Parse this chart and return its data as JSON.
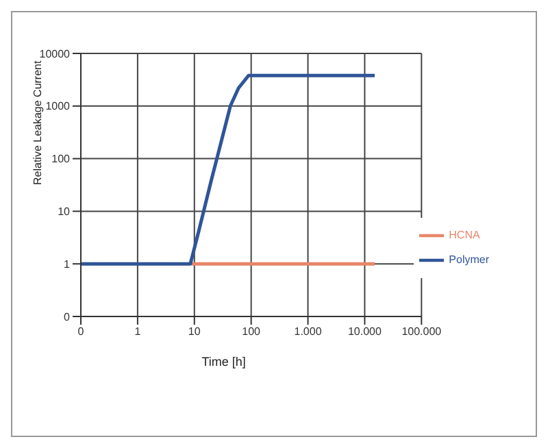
{
  "chart_data": {
    "type": "line",
    "xlabel": "Time [h]",
    "ylabel": "Relative Leakage Current",
    "log": "xy",
    "grid": true,
    "legend": "right",
    "marker": "none",
    "line_style": "solid",
    "xlim": [
      0.1,
      100000
    ],
    "xticks": [
      {
        "value": 0.1,
        "label": "0"
      },
      1,
      10,
      100,
      {
        "value": 1000,
        "label": "1.000"
      },
      {
        "value": 10000,
        "label": "10.000"
      },
      {
        "value": 100000,
        "label": "100.000"
      }
    ],
    "ylim": [
      0.1,
      10000
    ],
    "yticks": [
      {
        "value": 0.1,
        "label": "0"
      },
      1,
      10,
      100,
      1000,
      10000
    ],
    "series": [
      {
        "name": "HCNA",
        "color": "#e8866a",
        "x": [
          9,
          15000
        ],
        "values": [
          1,
          1
        ]
      },
      {
        "name": "Polymer",
        "color": "#2f5597",
        "x": [
          0.1,
          8.5,
          12,
          20,
          30,
          43,
          60,
          90,
          15000
        ],
        "values": [
          1,
          1,
          4.3,
          40,
          220,
          1000,
          2200,
          3800,
          3800
        ]
      }
    ]
  }
}
